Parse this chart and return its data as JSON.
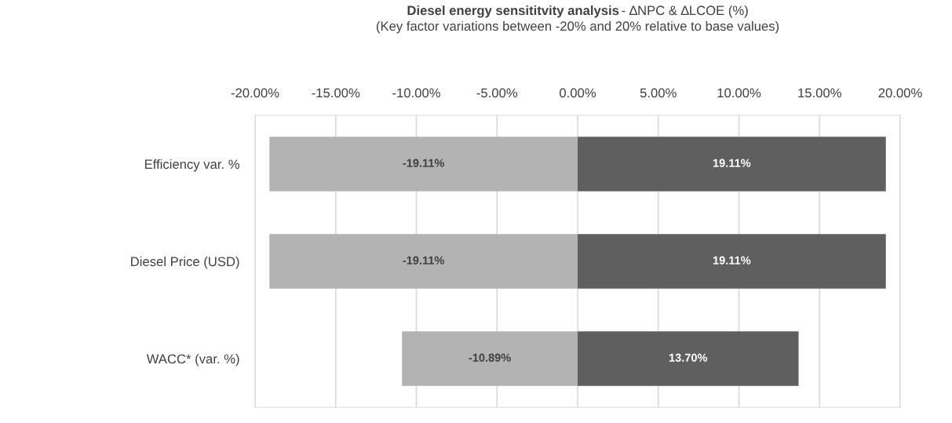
{
  "chart_data": {
    "type": "bar",
    "orientation": "horizontal",
    "stacked": true,
    "title": "Diesel energy sensititvity analysis",
    "subtitle": "- ∆NPC & ∆LCOE (%)",
    "annotations": [
      "(Key factor variations between -20% and 20% relative to base values)"
    ],
    "categories": [
      "Efficiency var. %",
      "Diesel Price (USD)",
      "WACC* (var. %)"
    ],
    "series": [
      {
        "color": "#b3b3b3",
        "values": [
          -19.11,
          -19.11,
          -10.89
        ],
        "value_labels": [
          "-19.11%",
          "-19.11%",
          "-10.89%"
        ]
      },
      {
        "color": "#5f5f5f",
        "values": [
          19.11,
          19.11,
          13.7
        ],
        "value_labels": [
          "19.11%",
          "19.11%",
          "13.70%"
        ]
      }
    ],
    "xlim": [
      -20,
      20
    ],
    "xticks": [
      {
        "value": -20,
        "label": "-20.00%"
      },
      {
        "value": -15,
        "label": "-15.00%"
      },
      {
        "value": -10,
        "label": "-10.00%"
      },
      {
        "value": -5,
        "label": "-5.00%"
      },
      {
        "value": 0,
        "label": "0.00%"
      },
      {
        "value": 5,
        "label": "5.00%"
      },
      {
        "value": 10,
        "label": "10.00%"
      },
      {
        "value": 15,
        "label": "15.00%"
      },
      {
        "value": 20,
        "label": "20.00%"
      }
    ],
    "grid": "x",
    "legend": false
  }
}
